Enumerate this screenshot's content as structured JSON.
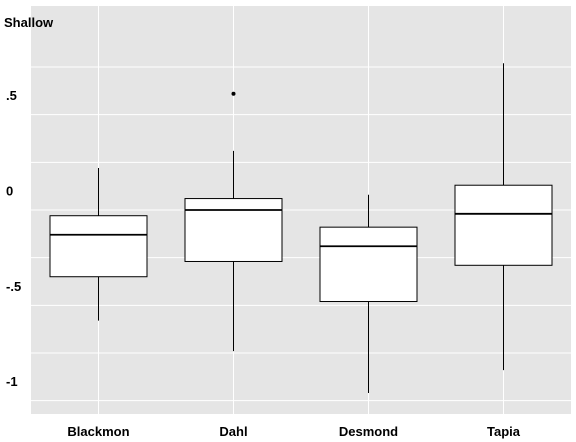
{
  "chart_data": {
    "type": "box",
    "ylabel": "Shallow",
    "xlabel": "",
    "title": "",
    "ylim": [
      -1.07,
      1.07
    ],
    "yticks": [
      {
        "value": 0.5,
        "label": ".5"
      },
      {
        "value": 0,
        "label": "0"
      },
      {
        "value": -0.5,
        "label": "-.5"
      },
      {
        "value": -1,
        "label": "-1"
      }
    ],
    "ygrid_values": [
      0.75,
      0.5,
      0.25,
      0,
      -0.25,
      -0.5,
      -0.75,
      -1
    ],
    "categories": [
      "Blackmon",
      "Dahl",
      "Desmond",
      "Tapia"
    ],
    "boxes": [
      {
        "category": "Blackmon",
        "whisker_low": -0.58,
        "q1": -0.35,
        "median": -0.13,
        "q3": -0.03,
        "whisker_high": 0.22,
        "outliers": []
      },
      {
        "category": "Dahl",
        "whisker_low": -0.74,
        "q1": -0.27,
        "median": 0.0,
        "q3": 0.06,
        "whisker_high": 0.31,
        "outliers": [
          0.61
        ]
      },
      {
        "category": "Desmond",
        "whisker_low": -0.96,
        "q1": -0.48,
        "median": -0.19,
        "q3": -0.09,
        "whisker_high": 0.08,
        "outliers": []
      },
      {
        "category": "Tapia",
        "whisker_low": -0.84,
        "q1": -0.29,
        "median": -0.02,
        "q3": 0.13,
        "whisker_high": 0.77,
        "outliers": []
      }
    ],
    "grid": true,
    "colors": {
      "panel_background": "#e5e5e5",
      "grid": "#ffffff",
      "box_fill": "#ffffff",
      "box_stroke": "#000000",
      "text": "#000000"
    }
  }
}
